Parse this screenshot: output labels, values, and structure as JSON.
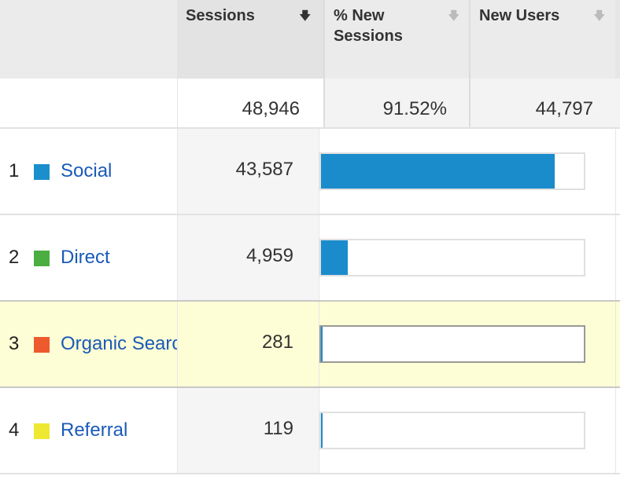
{
  "header": {
    "columns": [
      {
        "label": "Sessions",
        "sorted": true,
        "sort_icon": "arrow-down-icon"
      },
      {
        "label": "% New\nSessions",
        "sorted": false,
        "sort_icon": "arrow-down-icon"
      },
      {
        "label": "New Users",
        "sorted": false,
        "sort_icon": "arrow-down-icon"
      }
    ]
  },
  "totals": {
    "sessions": "48,946",
    "pct_new_sessions": "91.52%",
    "new_users": "44,797"
  },
  "rows": [
    {
      "index": "1",
      "source": "Social",
      "color": "#1b8fcb",
      "sessions": "43,587",
      "share": 0.89
    },
    {
      "index": "2",
      "source": "Direct",
      "color": "#4aae40",
      "sessions": "4,959",
      "share": 0.101
    },
    {
      "index": "3",
      "source": "Organic Search",
      "color": "#ec5a2e",
      "sessions": "281",
      "share": 0.006,
      "highlighted": true
    },
    {
      "index": "4",
      "source": "Referral",
      "color": "#eee832",
      "sessions": "119",
      "share": 0.002
    }
  ],
  "colors": {
    "accent_bar": "#1a8ccc",
    "link": "#1a5ab8",
    "highlight": "#fefed6"
  }
}
